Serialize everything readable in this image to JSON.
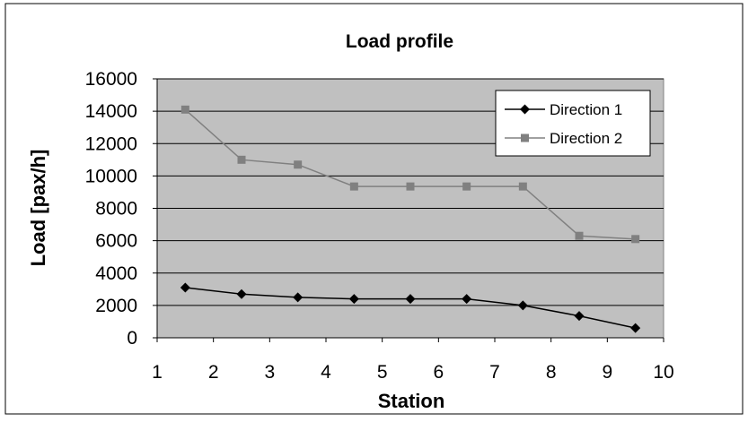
{
  "chart_data": {
    "type": "line",
    "title": "Load profile",
    "xlabel": "Station",
    "ylabel": "Load [pax/h]",
    "xlim": [
      1,
      10
    ],
    "ylim": [
      0,
      16000
    ],
    "x_ticks": [
      1,
      2,
      3,
      4,
      5,
      6,
      7,
      8,
      9,
      10
    ],
    "y_ticks": [
      0,
      2000,
      4000,
      6000,
      8000,
      10000,
      12000,
      14000,
      16000
    ],
    "grid": "horizontal",
    "legend_position": "top-right",
    "plot_background": "#c0c0c0",
    "x": [
      1.5,
      2.5,
      3.5,
      4.5,
      5.5,
      6.5,
      7.5,
      8.5,
      9.5
    ],
    "series": [
      {
        "name": "Direction 1",
        "color": "#000000",
        "marker": "diamond",
        "values": [
          3100,
          2700,
          2500,
          2400,
          2400,
          2400,
          2000,
          1350,
          600
        ]
      },
      {
        "name": "Direction 2",
        "color": "#808080",
        "marker": "square",
        "values": [
          14100,
          11000,
          10700,
          9350,
          9350,
          9350,
          9350,
          6300,
          6100
        ]
      }
    ]
  }
}
